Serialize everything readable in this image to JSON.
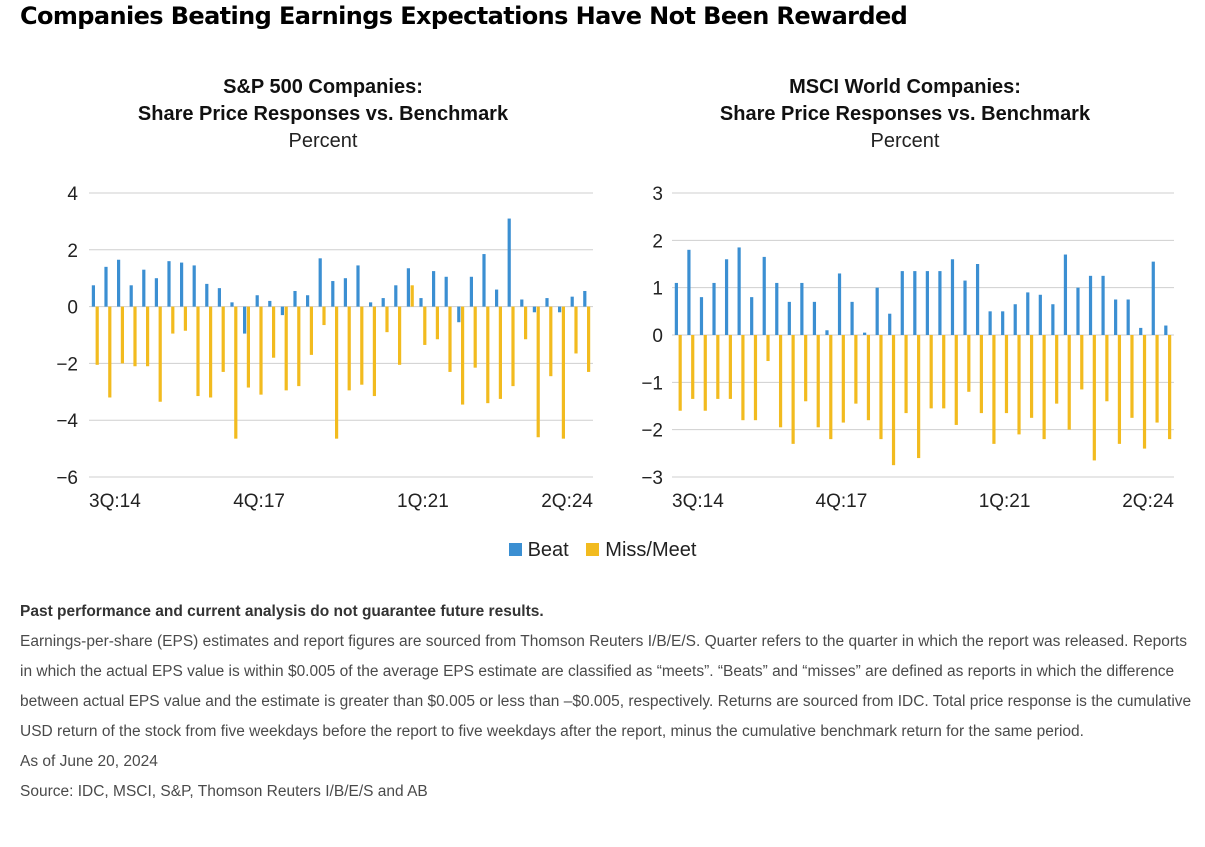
{
  "title": "Companies Beating Earnings Expectations Have Not Been Rewarded",
  "colors": {
    "beat": "#3b8fd2",
    "miss_meet": "#f2bb1f",
    "highlight_beat": "#f2bb1f",
    "axis": "#cfcfcf"
  },
  "legend": {
    "beat": "Beat",
    "miss_meet": "Miss/Meet"
  },
  "chart_data": [
    {
      "type": "bar",
      "title_line1": "S&P 500 Companies:",
      "title_line2": "Share Price Responses vs. Benchmark",
      "unit": "Percent",
      "ylim": [
        -6,
        4
      ],
      "yticks": [
        4,
        2,
        0,
        -2,
        -4,
        -6
      ],
      "ytick_labels": [
        "4",
        "2",
        "0",
        "−2",
        "−4",
        "−6"
      ],
      "xtick_labels": [
        "3Q:14",
        "4Q:17",
        "1Q:21",
        "2Q:24"
      ],
      "xtick_indices": [
        0,
        13,
        26,
        39
      ],
      "grid": "horizontal",
      "series": [
        {
          "name": "Beat",
          "values": [
            0.75,
            1.4,
            1.65,
            0.75,
            1.3,
            1.0,
            1.6,
            1.55,
            1.45,
            0.8,
            0.65,
            0.15,
            -0.95,
            0.4,
            0.2,
            -0.3,
            0.55,
            0.4,
            1.7,
            0.9,
            1.0,
            1.45,
            0.15,
            0.3,
            0.75,
            1.35,
            0.3,
            1.25,
            1.05,
            -0.55,
            1.05,
            1.85,
            0.6,
            3.1,
            0.25,
            -0.2,
            0.3,
            -0.2,
            0.35,
            0.55
          ]
        },
        {
          "name": "Miss/Meet",
          "values": [
            -2.05,
            -3.2,
            -2.0,
            -2.1,
            -2.1,
            -3.35,
            -0.95,
            -0.85,
            -3.15,
            -3.2,
            -2.3,
            -4.65,
            -2.85,
            -3.1,
            -1.8,
            -2.95,
            -2.8,
            -1.7,
            -0.65,
            -4.65,
            -2.95,
            -2.75,
            -3.15,
            -0.9,
            -2.05,
            0.75,
            -1.35,
            -1.15,
            -2.3,
            -3.45,
            -2.15,
            -3.4,
            -3.25,
            -2.8,
            -1.15,
            -4.6,
            -2.45,
            -4.65,
            -1.65,
            -2.3
          ]
        }
      ]
    },
    {
      "type": "bar",
      "title_line1": "MSCI World Companies:",
      "title_line2": "Share Price Responses vs. Benchmark",
      "unit": "Percent",
      "ylim": [
        -3,
        3
      ],
      "yticks": [
        3,
        2,
        1,
        0,
        -1,
        -2,
        -3
      ],
      "ytick_labels": [
        "3",
        "2",
        "1",
        "0",
        "−1",
        "−2",
        "−3"
      ],
      "xtick_labels": [
        "3Q:14",
        "4Q:17",
        "1Q:21",
        "2Q:24"
      ],
      "xtick_indices": [
        0,
        13,
        26,
        39
      ],
      "grid": "horizontal",
      "series": [
        {
          "name": "Beat",
          "values": [
            1.1,
            1.8,
            0.8,
            1.1,
            1.6,
            1.85,
            0.8,
            1.65,
            1.1,
            0.7,
            1.1,
            0.7,
            0.1,
            1.3,
            0.7,
            0.05,
            1.0,
            0.45,
            1.35,
            1.35,
            1.35,
            1.35,
            1.6,
            1.15,
            1.5,
            0.5,
            0.5,
            0.65,
            0.9,
            0.85,
            0.65,
            1.7,
            1.0,
            1.25,
            1.25,
            0.75,
            0.75,
            0.15,
            1.55,
            0.2
          ]
        },
        {
          "name": "Miss/Meet",
          "values": [
            -1.6,
            -1.35,
            -1.6,
            -1.35,
            -1.35,
            -1.8,
            -1.8,
            -0.55,
            -1.95,
            -2.3,
            -1.4,
            -1.95,
            -2.2,
            -1.85,
            -1.45,
            -1.8,
            -2.2,
            -2.75,
            -1.65,
            -2.6,
            -1.55,
            -1.55,
            -1.9,
            -1.2,
            -1.65,
            -2.3,
            -1.65,
            -2.1,
            -1.75,
            -2.2,
            -1.45,
            -2.0,
            -1.15,
            -2.65,
            -1.4,
            -2.3,
            -1.75,
            -2.4,
            -1.85,
            -2.2
          ]
        }
      ]
    }
  ],
  "notes": {
    "disclaimer": "Past performance and current analysis do not guarantee future results.",
    "methodology": "Earnings-per-share (EPS) estimates and report figures are sourced from Thomson Reuters I/B/E/S. Quarter refers to the quarter in which the report was released. Reports in which the actual EPS value is within $0.005 of the average EPS estimate are classified as “meets”. “Beats” and “misses” are defined as reports in which the difference between actual EPS value and the estimate is greater than $0.005 or less than –$0.005, respectively. Returns are sourced from IDC. Total price response is the cumulative USD return of the stock from five weekdays before the report to five weekdays after the report, minus the cumulative benchmark return for the same period.",
    "as_of": "As of June 20, 2024",
    "source": "Source: IDC, MSCI, S&P, Thomson Reuters I/B/E/S and AB"
  }
}
